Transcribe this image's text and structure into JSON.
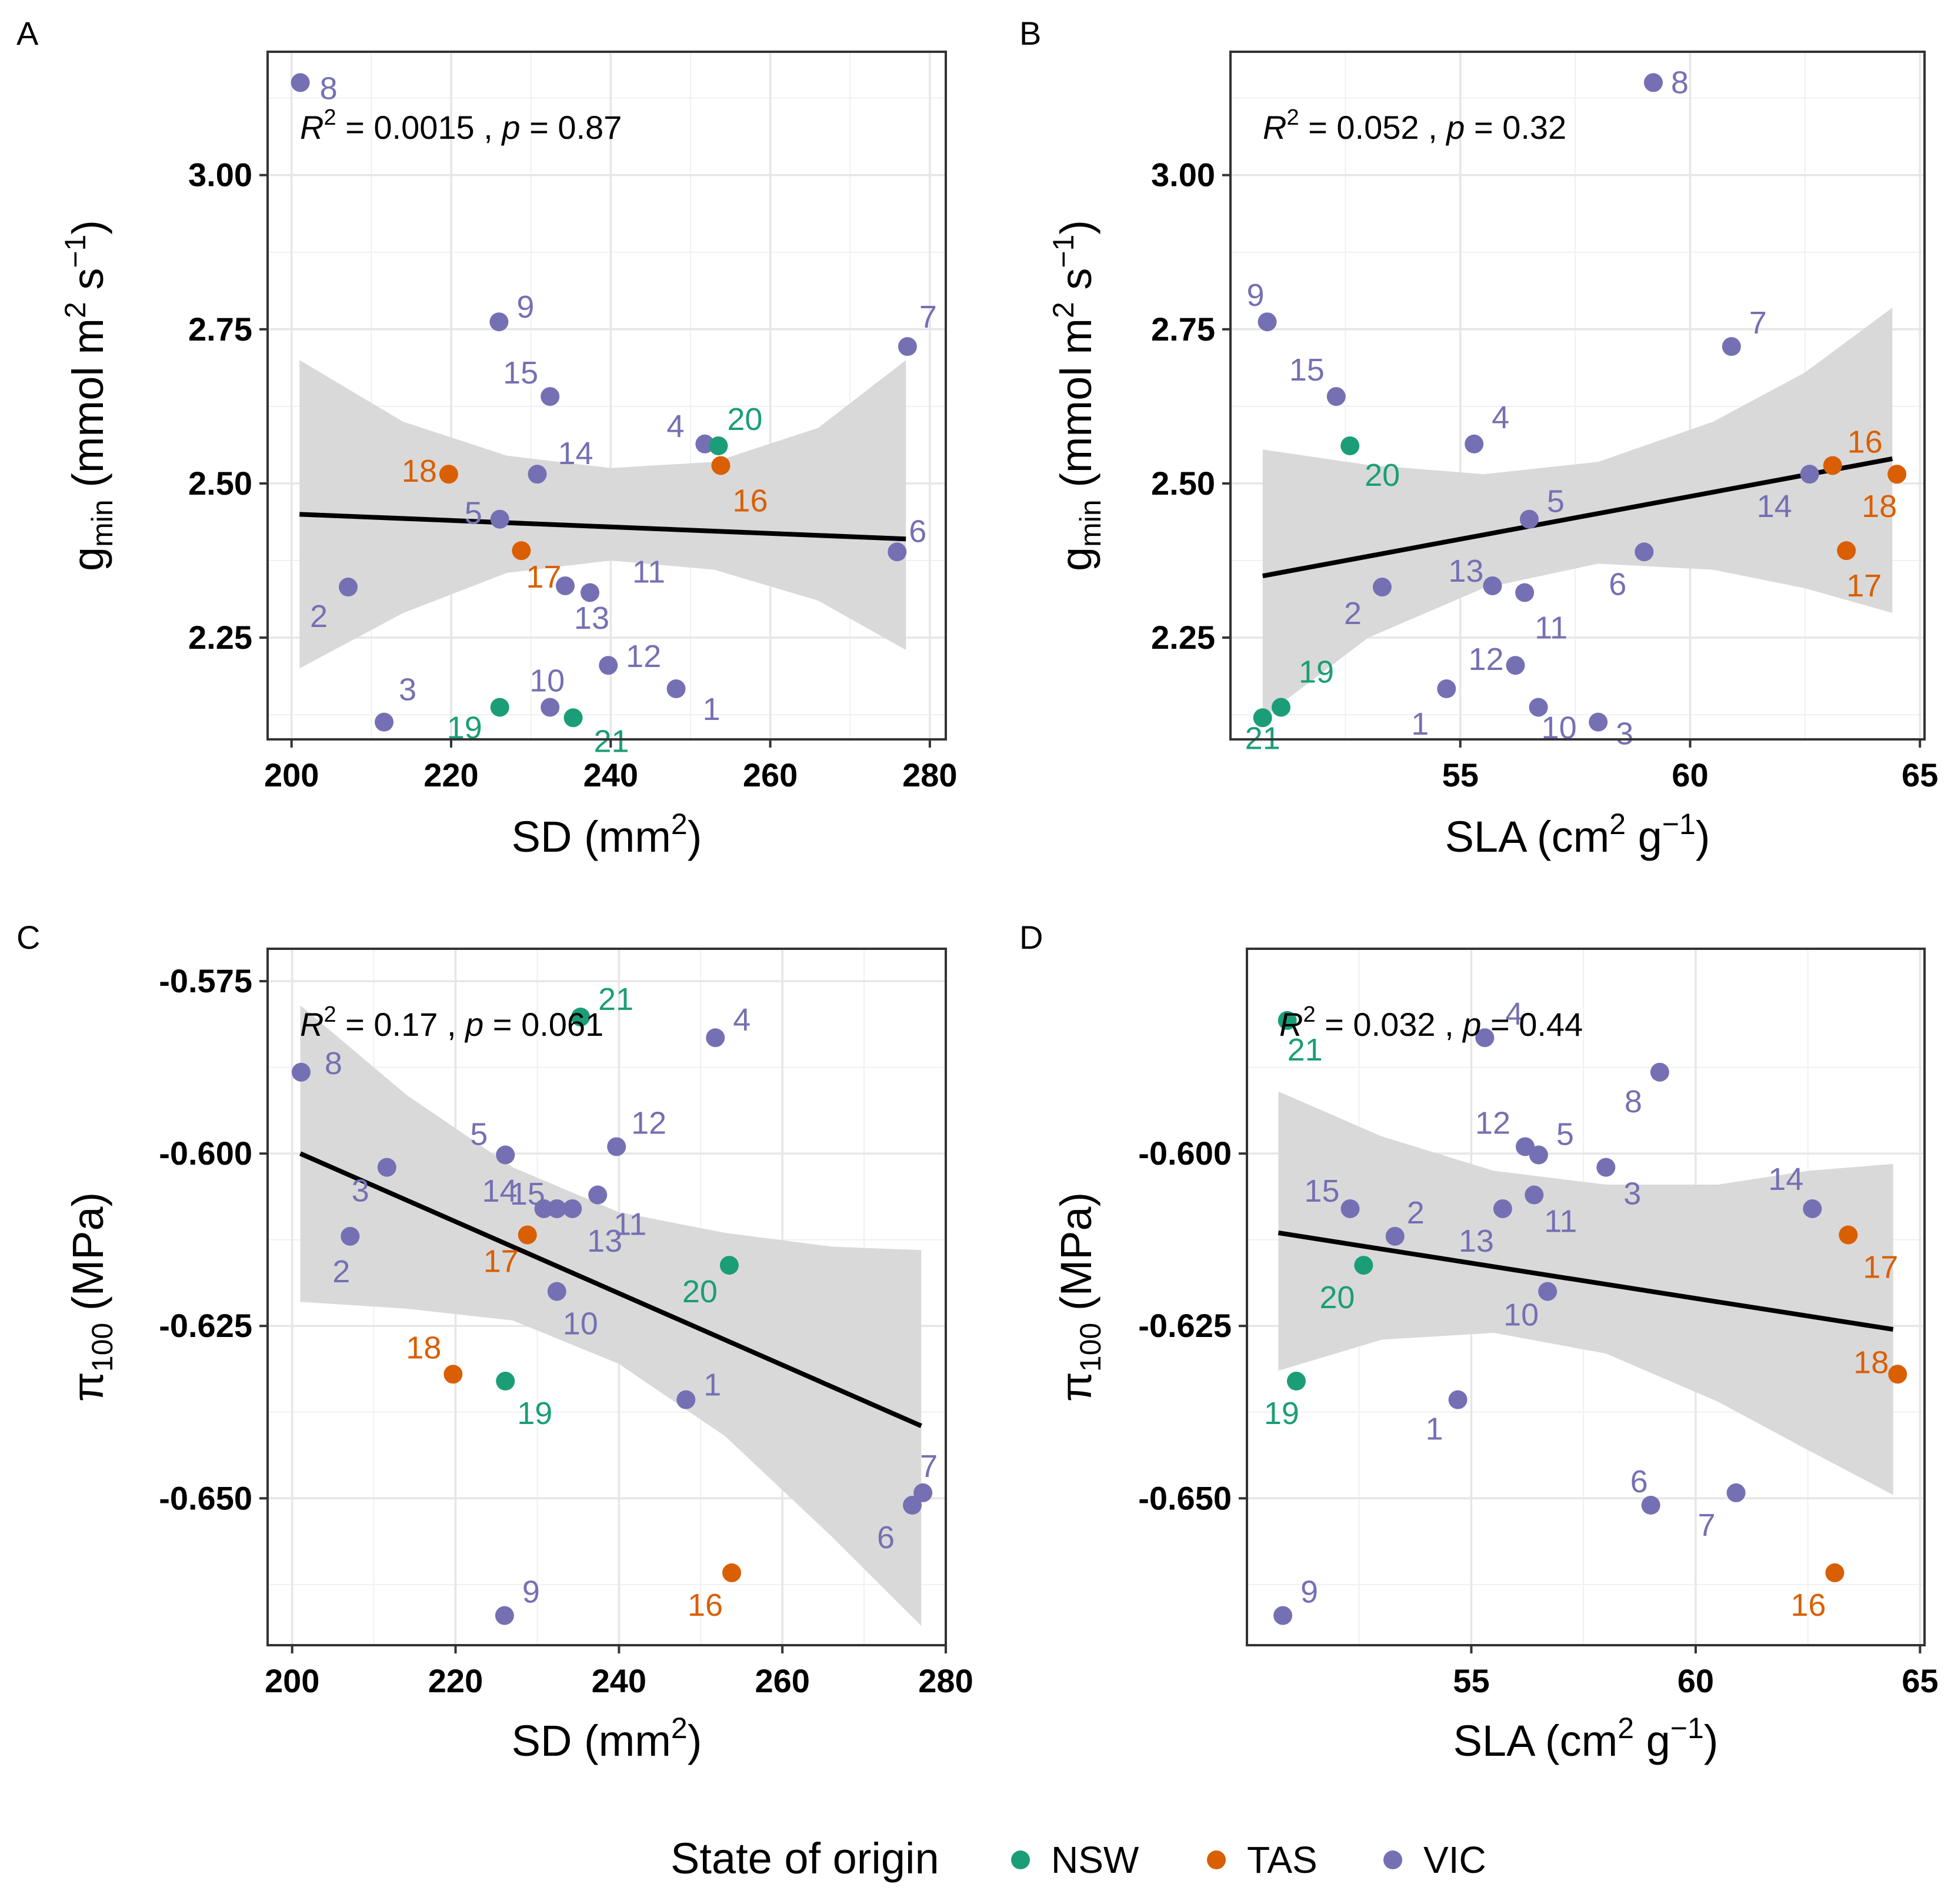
{
  "colors": {
    "NSW": "#1B9E77",
    "TAS": "#D95F02",
    "VIC": "#7570B3",
    "ribbon": "#D9D9D9",
    "line": "#000000"
  },
  "legend": {
    "title": "State of origin",
    "items": [
      "NSW",
      "TAS",
      "VIC"
    ]
  },
  "chart_data": [
    {
      "type": "scatter",
      "panel": "A",
      "title": "",
      "xlabel": {
        "base": "SD (mm",
        "sup": "2",
        "end": ")"
      },
      "ylabel": {
        "base": "g",
        "sub": "min",
        "unit_open": " (mmol m",
        "sup1": "2",
        "mid": " s",
        "sup2": "−1",
        "unit_close": ")"
      },
      "xlim": [
        197,
        282
      ],
      "ylim": [
        2.085,
        3.2
      ],
      "xticks": [
        200,
        220,
        240,
        260,
        280
      ],
      "xtick_labels": [
        "200",
        "220",
        "240",
        "260",
        "280"
      ],
      "yticks": [
        2.25,
        2.5,
        2.75,
        3.0
      ],
      "ytick_labels": [
        "2.25",
        "2.50",
        "2.75",
        "3.00"
      ],
      "stat": {
        "r2_value": "0.0015",
        "p_value": "0.87"
      },
      "fit": {
        "x": [
          201,
          277
        ],
        "y": [
          2.45,
          2.41
        ]
      },
      "ribbon": {
        "x": [
          201,
          214,
          227,
          240,
          253,
          266,
          277
        ],
        "lower": [
          2.2,
          2.29,
          2.355,
          2.375,
          2.36,
          2.31,
          2.23
        ],
        "upper": [
          2.7,
          2.6,
          2.545,
          2.525,
          2.535,
          2.59,
          2.7
        ]
      },
      "points": [
        {
          "id": "1",
          "state": "VIC",
          "x": 248.2,
          "y": 2.167
        },
        {
          "id": "2",
          "state": "VIC",
          "x": 207.1,
          "y": 2.332
        },
        {
          "id": "3",
          "state": "VIC",
          "x": 211.6,
          "y": 2.113
        },
        {
          "id": "4",
          "state": "VIC",
          "x": 251.8,
          "y": 2.564
        },
        {
          "id": "5",
          "state": "VIC",
          "x": 226.1,
          "y": 2.442
        },
        {
          "id": "6",
          "state": "VIC",
          "x": 275.9,
          "y": 2.389
        },
        {
          "id": "7",
          "state": "VIC",
          "x": 277.2,
          "y": 2.722
        },
        {
          "id": "8",
          "state": "VIC",
          "x": 201.1,
          "y": 3.15
        },
        {
          "id": "9",
          "state": "VIC",
          "x": 226.0,
          "y": 2.762
        },
        {
          "id": "10",
          "state": "VIC",
          "x": 232.4,
          "y": 2.137
        },
        {
          "id": "11",
          "state": "VIC",
          "x": 237.4,
          "y": 2.323
        },
        {
          "id": "12",
          "state": "VIC",
          "x": 239.7,
          "y": 2.205
        },
        {
          "id": "13",
          "state": "VIC",
          "x": 234.3,
          "y": 2.334
        },
        {
          "id": "14",
          "state": "VIC",
          "x": 230.8,
          "y": 2.515
        },
        {
          "id": "15",
          "state": "VIC",
          "x": 232.4,
          "y": 2.641
        },
        {
          "id": "16",
          "state": "TAS",
          "x": 253.8,
          "y": 2.529
        },
        {
          "id": "17",
          "state": "TAS",
          "x": 228.8,
          "y": 2.391
        },
        {
          "id": "18",
          "state": "TAS",
          "x": 219.7,
          "y": 2.515
        },
        {
          "id": "19",
          "state": "NSW",
          "x": 226.1,
          "y": 2.137
        },
        {
          "id": "20",
          "state": "NSW",
          "x": 253.5,
          "y": 2.561
        },
        {
          "id": "21",
          "state": "NSW",
          "x": 235.3,
          "y": 2.12
        }
      ]
    },
    {
      "type": "scatter",
      "panel": "B",
      "title": "",
      "xlabel": {
        "base": "SLA (cm",
        "sup": "2",
        "mid": " g",
        "sup2": "−1",
        "end": ")"
      },
      "ylabel": {
        "base": "g",
        "sub": "min",
        "unit_open": " (mmol m",
        "sup1": "2",
        "mid": " s",
        "sup2": "−1",
        "unit_close": ")"
      },
      "xlim": [
        50.0,
        65.1
      ],
      "ylim": [
        2.085,
        3.2
      ],
      "xticks": [
        55,
        60,
        65
      ],
      "xtick_labels": [
        "55",
        "60",
        "65"
      ],
      "yticks": [
        2.25,
        2.5,
        2.75,
        3.0
      ],
      "ytick_labels": [
        "2.25",
        "2.50",
        "2.75",
        "3.00"
      ],
      "stat": {
        "r2_value": "0.052",
        "p_value": "0.32"
      },
      "fit": {
        "x": [
          50.7,
          64.4
        ],
        "y": [
          2.35,
          2.54
        ]
      },
      "ribbon": {
        "x": [
          50.7,
          53,
          55.5,
          58,
          60.5,
          62.5,
          64.4
        ],
        "lower": [
          2.12,
          2.25,
          2.33,
          2.37,
          2.36,
          2.33,
          2.29
        ],
        "upper": [
          2.555,
          2.53,
          2.515,
          2.535,
          2.6,
          2.68,
          2.785
        ]
      },
      "points": [
        {
          "id": "1",
          "state": "VIC",
          "x": 54.7,
          "y": 2.167
        },
        {
          "id": "2",
          "state": "VIC",
          "x": 53.3,
          "y": 2.332
        },
        {
          "id": "3",
          "state": "VIC",
          "x": 58.0,
          "y": 2.113
        },
        {
          "id": "4",
          "state": "VIC",
          "x": 55.3,
          "y": 2.564
        },
        {
          "id": "5",
          "state": "VIC",
          "x": 56.5,
          "y": 2.442
        },
        {
          "id": "6",
          "state": "VIC",
          "x": 59.0,
          "y": 2.389
        },
        {
          "id": "7",
          "state": "VIC",
          "x": 60.9,
          "y": 2.722
        },
        {
          "id": "8",
          "state": "VIC",
          "x": 59.2,
          "y": 3.15
        },
        {
          "id": "9",
          "state": "VIC",
          "x": 50.8,
          "y": 2.762
        },
        {
          "id": "10",
          "state": "VIC",
          "x": 56.7,
          "y": 2.137
        },
        {
          "id": "11",
          "state": "VIC",
          "x": 56.4,
          "y": 2.323
        },
        {
          "id": "12",
          "state": "VIC",
          "x": 56.2,
          "y": 2.205
        },
        {
          "id": "13",
          "state": "VIC",
          "x": 55.7,
          "y": 2.334
        },
        {
          "id": "14",
          "state": "VIC",
          "x": 62.6,
          "y": 2.515
        },
        {
          "id": "15",
          "state": "VIC",
          "x": 52.3,
          "y": 2.641
        },
        {
          "id": "16",
          "state": "TAS",
          "x": 63.1,
          "y": 2.529
        },
        {
          "id": "17",
          "state": "TAS",
          "x": 63.4,
          "y": 2.391
        },
        {
          "id": "18",
          "state": "TAS",
          "x": 64.5,
          "y": 2.515
        },
        {
          "id": "19",
          "state": "NSW",
          "x": 51.1,
          "y": 2.137
        },
        {
          "id": "20",
          "state": "NSW",
          "x": 52.6,
          "y": 2.561
        },
        {
          "id": "21",
          "state": "NSW",
          "x": 50.7,
          "y": 2.12
        }
      ]
    },
    {
      "type": "scatter",
      "panel": "C",
      "title": "",
      "xlabel": {
        "base": "SD (mm",
        "sup": "2",
        "end": ")"
      },
      "ylabel": {
        "base": "π",
        "sub": "100",
        "unit_open": " (MPa)"
      },
      "xlim": [
        197,
        280
      ],
      "ylim": [
        -0.6713,
        -0.5703
      ],
      "xticks": [
        200,
        220,
        240,
        260,
        280
      ],
      "xtick_labels": [
        "200",
        "220",
        "240",
        "260",
        "280"
      ],
      "yticks": [
        -0.575,
        -0.6,
        -0.625,
        -0.65
      ],
      "ytick_labels": [
        "-0.575",
        "-0.600",
        "-0.625",
        "-0.650"
      ],
      "stat": {
        "r2_value": "0.17",
        "p_value": "0.061"
      },
      "fit": {
        "x": [
          201,
          277
        ],
        "y": [
          -0.6,
          -0.6395
        ]
      },
      "ribbon": {
        "x": [
          201,
          214,
          227,
          240,
          253,
          266,
          277
        ],
        "lower": [
          -0.6215,
          -0.6225,
          -0.6242,
          -0.6305,
          -0.641,
          -0.6555,
          -0.6685
        ],
        "upper": [
          -0.5785,
          -0.5915,
          -0.602,
          -0.6085,
          -0.6115,
          -0.6135,
          -0.614
        ]
      },
      "points": [
        {
          "id": "1",
          "state": "VIC",
          "x": 248.2,
          "y": -0.6357
        },
        {
          "id": "2",
          "state": "VIC",
          "x": 207.1,
          "y": -0.612
        },
        {
          "id": "3",
          "state": "VIC",
          "x": 211.6,
          "y": -0.602
        },
        {
          "id": "4",
          "state": "VIC",
          "x": 251.8,
          "y": -0.5832
        },
        {
          "id": "5",
          "state": "VIC",
          "x": 226.1,
          "y": -0.6002
        },
        {
          "id": "6",
          "state": "VIC",
          "x": 275.9,
          "y": -0.651
        },
        {
          "id": "7",
          "state": "VIC",
          "x": 277.2,
          "y": -0.6492
        },
        {
          "id": "8",
          "state": "VIC",
          "x": 201.1,
          "y": -0.5882
        },
        {
          "id": "9",
          "state": "VIC",
          "x": 226.0,
          "y": -0.667
        },
        {
          "id": "10",
          "state": "VIC",
          "x": 232.4,
          "y": -0.62
        },
        {
          "id": "11",
          "state": "VIC",
          "x": 237.4,
          "y": -0.606
        },
        {
          "id": "12",
          "state": "VIC",
          "x": 239.7,
          "y": -0.599
        },
        {
          "id": "13",
          "state": "VIC",
          "x": 234.3,
          "y": -0.608
        },
        {
          "id": "14",
          "state": "VIC",
          "x": 230.8,
          "y": -0.608
        },
        {
          "id": "15",
          "state": "VIC",
          "x": 232.4,
          "y": -0.608
        },
        {
          "id": "16",
          "state": "TAS",
          "x": 253.8,
          "y": -0.6608
        },
        {
          "id": "17",
          "state": "TAS",
          "x": 228.8,
          "y": -0.6118
        },
        {
          "id": "18",
          "state": "TAS",
          "x": 219.7,
          "y": -0.632
        },
        {
          "id": "19",
          "state": "NSW",
          "x": 226.1,
          "y": -0.633
        },
        {
          "id": "20",
          "state": "NSW",
          "x": 253.5,
          "y": -0.6162
        },
        {
          "id": "21",
          "state": "NSW",
          "x": 235.3,
          "y": -0.5802
        }
      ]
    },
    {
      "type": "scatter",
      "panel": "D",
      "title": "",
      "xlabel": {
        "base": "SLA (cm",
        "sup": "2",
        "mid": " g",
        "sup2": "−1",
        "end": ")"
      },
      "ylabel": {
        "base": "π",
        "sub": "100",
        "unit_open": " (MPa)"
      },
      "xlim": [
        50.0,
        65.1
      ],
      "ylim": [
        -0.6713,
        -0.5703
      ],
      "xticks": [
        55,
        60,
        65
      ],
      "xtick_labels": [
        "55",
        "60",
        "65"
      ],
      "yticks": [
        -0.6,
        -0.625,
        -0.65
      ],
      "ytick_labels": [
        "-0.600",
        "-0.625",
        "-0.650"
      ],
      "stat": {
        "r2_value": "0.032",
        "p_value": "0.44"
      },
      "fit": {
        "x": [
          50.7,
          64.4
        ],
        "y": [
          -0.6115,
          -0.6255
        ]
      },
      "ribbon": {
        "x": [
          50.7,
          53,
          55.5,
          58,
          60.5,
          62.5,
          64.4
        ],
        "lower": [
          -0.6315,
          -0.627,
          -0.626,
          -0.629,
          -0.636,
          -0.643,
          -0.6495
        ],
        "upper": [
          -0.591,
          -0.5975,
          -0.6025,
          -0.6045,
          -0.6045,
          -0.6025,
          -0.6015
        ]
      },
      "points": [
        {
          "id": "1",
          "state": "VIC",
          "x": 54.7,
          "y": -0.6357
        },
        {
          "id": "2",
          "state": "VIC",
          "x": 53.3,
          "y": -0.612
        },
        {
          "id": "3",
          "state": "VIC",
          "x": 58.0,
          "y": -0.602
        },
        {
          "id": "4",
          "state": "VIC",
          "x": 55.3,
          "y": -0.5832
        },
        {
          "id": "5",
          "state": "VIC",
          "x": 56.5,
          "y": -0.6002
        },
        {
          "id": "6",
          "state": "VIC",
          "x": 59.0,
          "y": -0.651
        },
        {
          "id": "7",
          "state": "VIC",
          "x": 60.9,
          "y": -0.6492
        },
        {
          "id": "8",
          "state": "VIC",
          "x": 59.2,
          "y": -0.5882
        },
        {
          "id": "9",
          "state": "VIC",
          "x": 50.8,
          "y": -0.667
        },
        {
          "id": "10",
          "state": "VIC",
          "x": 56.7,
          "y": -0.62
        },
        {
          "id": "11",
          "state": "VIC",
          "x": 56.4,
          "y": -0.606
        },
        {
          "id": "12",
          "state": "VIC",
          "x": 56.2,
          "y": -0.599
        },
        {
          "id": "13",
          "state": "VIC",
          "x": 55.7,
          "y": -0.608
        },
        {
          "id": "14",
          "state": "VIC",
          "x": 62.6,
          "y": -0.608
        },
        {
          "id": "15",
          "state": "VIC",
          "x": 52.3,
          "y": -0.608
        },
        {
          "id": "16",
          "state": "TAS",
          "x": 63.1,
          "y": -0.6608
        },
        {
          "id": "17",
          "state": "TAS",
          "x": 63.4,
          "y": -0.6118
        },
        {
          "id": "18",
          "state": "TAS",
          "x": 64.5,
          "y": -0.632
        },
        {
          "id": "19",
          "state": "NSW",
          "x": 51.1,
          "y": -0.633
        },
        {
          "id": "20",
          "state": "NSW",
          "x": 52.6,
          "y": -0.6162
        },
        {
          "id": "21",
          "state": "NSW",
          "x": 50.9,
          "y": -0.5807
        }
      ]
    }
  ]
}
